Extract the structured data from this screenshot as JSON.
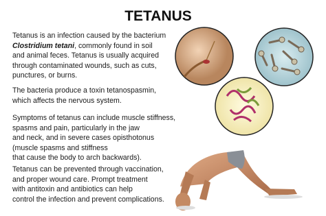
{
  "title": "TETANUS",
  "paragraphs": [
    {
      "lines": [
        "Tetanus is an infection caused by the bacterium",
        [
          "Clostridium tetani",
          ", commonly found in soil"
        ],
        "and animal feces. Tetanus is usually acquired",
        "through contaminated wounds, such as cuts,",
        "punctures, or burns."
      ]
    },
    {
      "lines": [
        "The bacteria produce a toxin tetanospasmin,",
        "which affects the nervous system."
      ]
    },
    {
      "lines": [
        "Symptoms of tetanus can include muscle stiffness,",
        "spasms and pain, particularly in the jaw",
        "and neck, and in severe cases opisthotonus",
        "(muscle spasms and stiffness",
        "that cause the body to arch backwards)."
      ]
    },
    {
      "lines": [
        "Tetanus can be prevented through vaccination,",
        "and proper wound care. Prompt treatment",
        "with antitoxin and antibiotics can help",
        "control the infection and prevent complications."
      ]
    }
  ]
}
